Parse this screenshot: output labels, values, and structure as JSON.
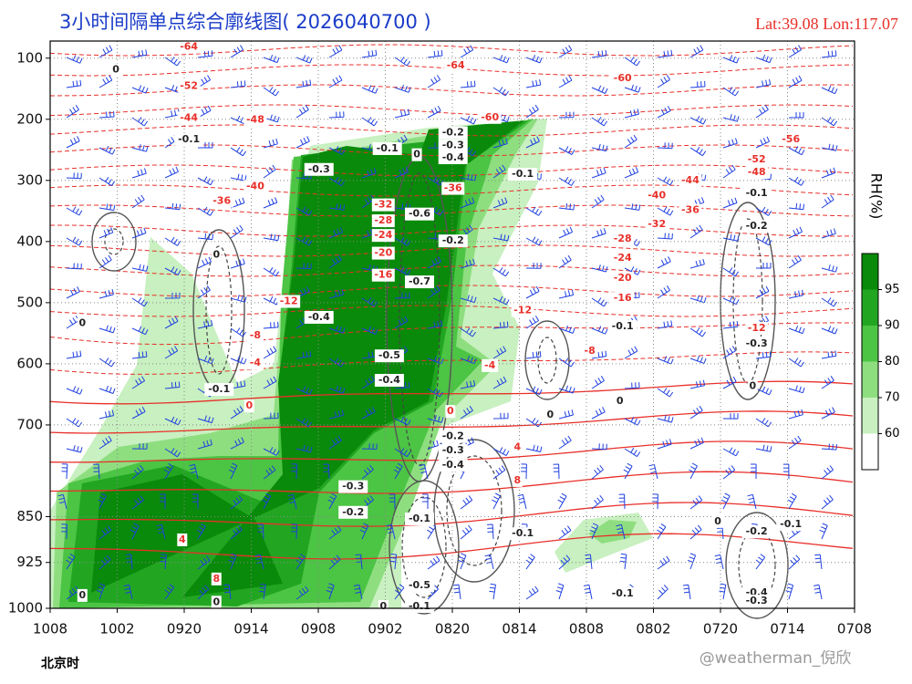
{
  "chart_data": {
    "type": "cross-section",
    "title": "3小时间隔单点综合廓线图( 2026040700 )",
    "location": "Lat:39.08  Lon:117.07",
    "xlabel": "北京时",
    "categories": [
      "1008",
      "1002",
      "0920",
      "0914",
      "0908",
      "0902",
      "0820",
      "0814",
      "0808",
      "0802",
      "0720",
      "0714",
      "0708"
    ],
    "ylim": [
      1000,
      72
    ],
    "yticks": [
      100,
      200,
      300,
      400,
      500,
      600,
      700,
      850,
      925,
      1000
    ],
    "grid": true,
    "colorbar": {
      "label": "RH(%)",
      "ticks": [
        60,
        70,
        80,
        90,
        95
      ],
      "colors": [
        "#ffffff",
        "#c8f0c0",
        "#8ede80",
        "#4cc444",
        "#22a622",
        "#0a8a0a"
      ]
    },
    "temperature_labels": {
      "color": "#e8302a",
      "values": [
        -64,
        -64,
        -52,
        -44,
        -48,
        -40,
        -36,
        -60,
        -60,
        -56,
        -52,
        -48,
        -44,
        -40,
        -36,
        -32,
        -28,
        -24,
        -20,
        -16,
        -12,
        -12,
        -12,
        -8,
        -8,
        -4,
        -4,
        0,
        0,
        4,
        4,
        8,
        8,
        -32,
        -28,
        -24,
        -20,
        -16,
        -36
      ],
      "x": [
        2.07,
        6.05,
        2.07,
        2.07,
        3.06,
        3.06,
        2.56,
        6.56,
        8.54,
        11.05,
        10.54,
        10.54,
        9.55,
        9.05,
        9.55,
        9.05,
        8.54,
        8.54,
        8.54,
        8.54,
        7.05,
        3.56,
        10.54,
        3.06,
        8.05,
        3.06,
        6.56,
        2.97,
        5.97,
        6.97,
        1.97,
        6.97,
        2.48,
        4.97,
        4.97,
        4.97,
        4.97,
        4.97,
        6.01
      ],
      "y": [
        82,
        112,
        146,
        198,
        201,
        310,
        334,
        197,
        133,
        233,
        266,
        287,
        300,
        325,
        349,
        372,
        396,
        427,
        460,
        493,
        513,
        498,
        542,
        554,
        579,
        599,
        603,
        669,
        678,
        737,
        888,
        791,
        952,
        340,
        366,
        390,
        419,
        455,
        313
      ]
    },
    "omega_labels": {
      "color": "#222222",
      "values": [
        -0.1,
        0,
        -0.3,
        -0.2,
        -0.3,
        -0.4,
        -0.1,
        -0.6,
        -0.2,
        -0.7,
        -0.4,
        -0.5,
        -0.4,
        -0.1,
        -0.2,
        -0.1,
        -0.3,
        -0.2,
        -0.3,
        -0.4,
        -0.3,
        -0.2,
        -0.1,
        -0.1,
        -0.2,
        -0.1,
        -0.5,
        -0.1,
        -0.1,
        -0.4,
        -0.3,
        0,
        0,
        0,
        0,
        0,
        0,
        0,
        0,
        0,
        0,
        -0.1,
        -0.1
      ],
      "x": [
        5.03,
        5.47,
        4.01,
        6.01,
        6.01,
        6.01,
        7.05,
        5.51,
        6.01,
        5.51,
        4.01,
        5.06,
        5.06,
        10.54,
        10.54,
        8.54,
        10.54,
        6.01,
        6.01,
        6.01,
        4.52,
        4.52,
        5.51,
        7.05,
        10.54,
        11.05,
        5.51,
        5.51,
        8.54,
        10.54,
        10.54,
        0.48,
        2.48,
        4.97,
        0.98,
        0.48,
        7.46,
        8.5,
        9.96,
        10.48,
        2.48,
        2.07,
        2.52
      ],
      "y": [
        248,
        258,
        282,
        222,
        243,
        263,
        290,
        355,
        399,
        466,
        524,
        587,
        627,
        321,
        375,
        539,
        567,
        719,
        742,
        766,
        801,
        843,
        854,
        878,
        875,
        863,
        963,
        997,
        976,
        975,
        988,
        979,
        990,
        997,
        119,
        534,
        684,
        661,
        858,
        637,
        422,
        233,
        642
      ]
    }
  },
  "watermark": "@weatherman_倪欣"
}
